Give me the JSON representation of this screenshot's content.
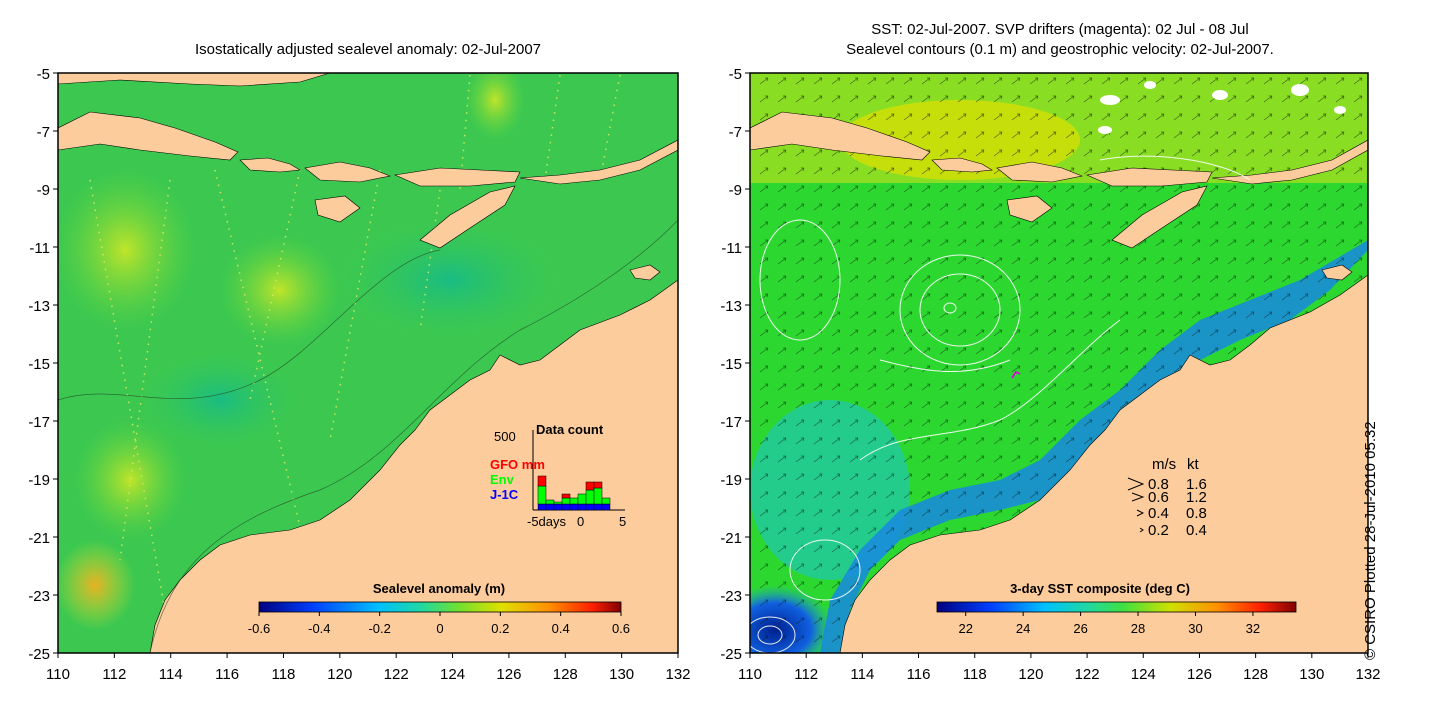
{
  "left_panel": {
    "title": "Isostatically adjusted sealevel anomaly: 02-Jul-2007",
    "y_ticks": [
      "-5",
      "-7",
      "-9",
      "-11",
      "-13",
      "-15",
      "-17",
      "-19",
      "-21",
      "-23",
      "-25"
    ],
    "x_ticks": [
      "110",
      "112",
      "114",
      "116",
      "118",
      "120",
      "122",
      "124",
      "126",
      "128",
      "130",
      "132"
    ],
    "colorbar": {
      "label": "Sealevel anomaly (m)",
      "ticks": [
        "-0.6",
        "-0.4",
        "-0.2",
        "0",
        "0.2",
        "0.4",
        "0.6"
      ],
      "range": [
        -0.6,
        0.6
      ]
    },
    "data_count": {
      "title": "Data count",
      "ymax_label": "500",
      "legend": [
        {
          "name": "GFO mm",
          "color": "#ff0000"
        },
        {
          "name": "Env",
          "color": "#00ff00"
        },
        {
          "name": "J-1C",
          "color": "#0000ff"
        }
      ],
      "x_labels": [
        "-5days",
        "0",
        "5"
      ]
    }
  },
  "right_panel": {
    "title_line1": "SST: 02-Jul-2007. SVP drifters (magenta): 02 Jul - 08 Jul",
    "title_line2": "Sealevel contours (0.1 m) and geostrophic velocity: 02-Jul-2007.",
    "y_ticks": [
      "-5",
      "-7",
      "-9",
      "-11",
      "-13",
      "-15",
      "-17",
      "-19",
      "-21",
      "-23",
      "-25"
    ],
    "x_ticks": [
      "110",
      "112",
      "114",
      "116",
      "118",
      "120",
      "122",
      "124",
      "126",
      "128",
      "130",
      "132"
    ],
    "colorbar": {
      "label": "3-day SST composite (deg C)",
      "ticks": [
        "22",
        "24",
        "26",
        "28",
        "30",
        "32"
      ],
      "range": [
        21,
        33.5
      ]
    },
    "velocity_legend": {
      "header_ms": "m/s",
      "header_kt": "kt",
      "rows": [
        {
          "ms": "0.8",
          "kt": "1.6"
        },
        {
          "ms": "0.6",
          "kt": "1.2"
        },
        {
          "ms": "0.4",
          "kt": "0.8"
        },
        {
          "ms": "0.2",
          "kt": "0.4"
        }
      ]
    }
  },
  "credit": "© CSIRO Plotted 28-Jul-2010 05:32",
  "colors": {
    "land": "#fccc9c",
    "sea_left": "#3cc850",
    "sea_right": "#2cd830"
  }
}
